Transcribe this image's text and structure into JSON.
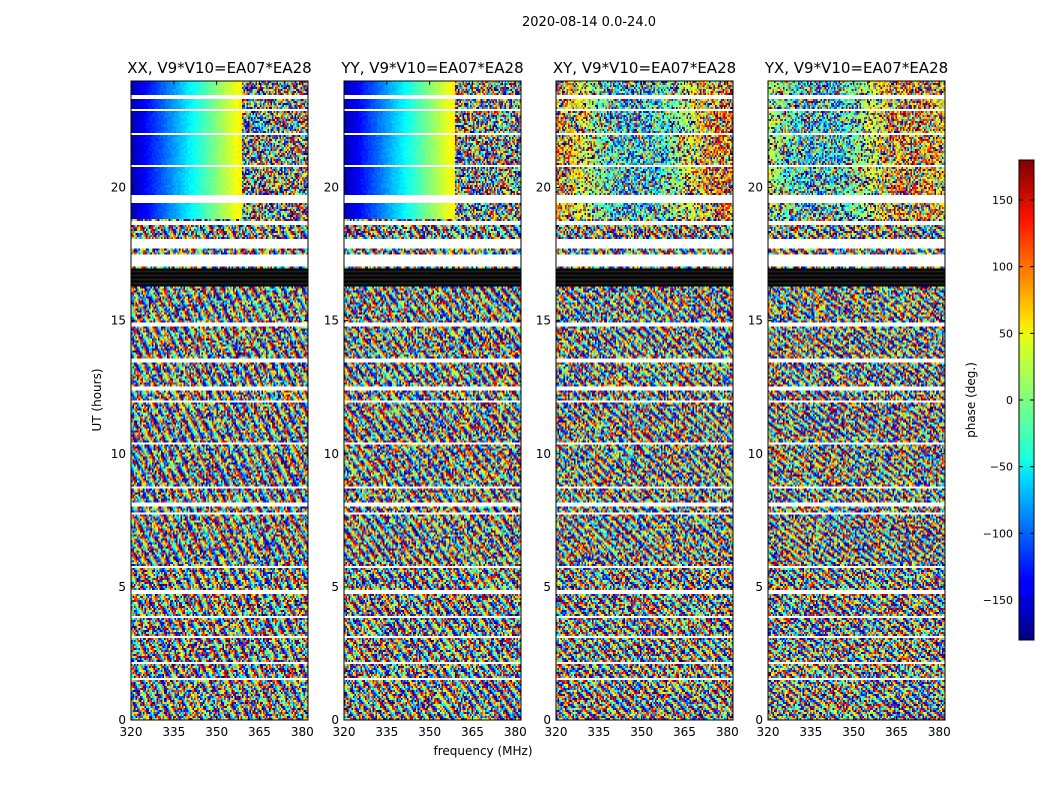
{
  "chart_data": {
    "type": "heatmap",
    "suptitle": "2020-08-14 0.0-24.0",
    "xlabel": "frequency (MHz)",
    "ylabel": "UT (hours)",
    "xlim": [
      320,
      382
    ],
    "ylim": [
      0,
      24
    ],
    "xticks": [
      320,
      335,
      350,
      365,
      380
    ],
    "yticks": [
      0,
      5,
      10,
      15,
      20
    ],
    "panels": [
      {
        "title": "XX, V9*V10=EA07*EA28",
        "pol": "XX"
      },
      {
        "title": "YY, V9*V10=EA07*EA28",
        "pol": "YY"
      },
      {
        "title": "XY, V9*V10=EA07*EA28",
        "pol": "XY"
      },
      {
        "title": "YX, V9*V10=EA07*EA28",
        "pol": "YX"
      }
    ],
    "colorbar": {
      "label": "phase (deg.)",
      "colormap": "jet",
      "range": [
        -180,
        180
      ],
      "ticks": [
        150,
        100,
        50,
        0,
        -50,
        -100,
        -150
      ],
      "tick_labels": [
        "150",
        "100",
        "50",
        "0",
        "−50",
        "−100",
        "−150"
      ]
    },
    "gaps_ut_hours": [
      [
        23.35,
        23.45
      ],
      [
        22.9,
        22.97
      ],
      [
        21.95,
        22.02
      ],
      [
        20.8,
        20.88
      ],
      [
        19.4,
        19.7
      ],
      [
        18.6,
        18.75
      ],
      [
        17.7,
        18.1
      ],
      [
        17.0,
        17.45
      ],
      [
        14.8,
        14.9
      ],
      [
        13.45,
        13.55
      ],
      [
        12.35,
        12.5
      ],
      [
        11.9,
        12.0
      ],
      [
        10.35,
        10.45
      ],
      [
        8.7,
        8.8
      ],
      [
        8.0,
        8.15
      ],
      [
        7.7,
        7.78
      ],
      [
        5.7,
        5.8
      ],
      [
        4.75,
        4.85
      ],
      [
        3.8,
        3.9
      ],
      [
        3.05,
        3.15
      ],
      [
        2.1,
        2.18
      ],
      [
        1.5,
        1.58
      ]
    ],
    "flagged_black_ut_hours": [
      [
        16.25,
        16.95
      ]
    ]
  }
}
